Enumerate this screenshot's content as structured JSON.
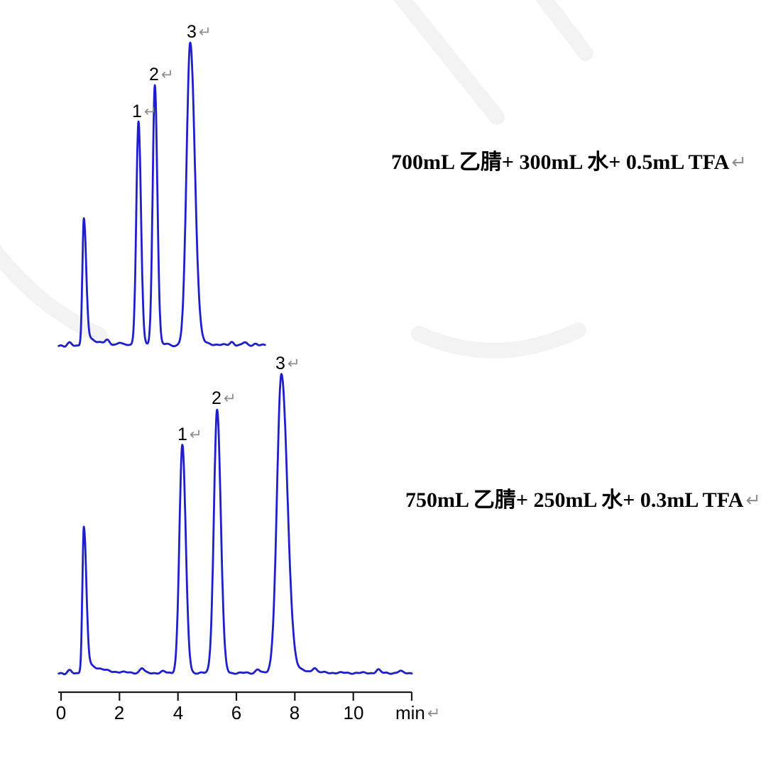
{
  "ui": {
    "return_mark": "↵"
  },
  "chart_data": {
    "type": "line",
    "title": "",
    "description": "Two stacked HPLC chromatograms (UV traces) comparing two mobile phase compositions; peaks numbered 1-3, x-axis in minutes",
    "colors": {
      "trace": "#1e1ecd",
      "axis": "#1a1a1a",
      "text": "#000000",
      "return_mark": "#8f8f8f"
    },
    "x_axis": {
      "unit_label": "min",
      "tick_labels": [
        "0",
        "2",
        "4",
        "6",
        "8",
        "10"
      ],
      "tick_values": [
        0,
        2,
        4,
        6,
        8,
        10
      ],
      "end_value": 12,
      "grid": false
    },
    "chromatograms": [
      {
        "position": "top",
        "condition_label": "700mL 乙腈+ 300mL 水+ 0.5mL TFA",
        "x_range_min": [
          -0.08,
          6.98
        ],
        "peaks": [
          {
            "label": "",
            "t": 0.78,
            "h": 0.417,
            "wl": 0.05,
            "wr": 0.075,
            "tail_amp": 0.1,
            "tail_tau": 0.4
          },
          {
            "label": "1",
            "t": 2.65,
            "h": 0.738,
            "wl": 0.075,
            "wr": 0.085,
            "tail_amp": 0,
            "tail_tau": 0.3
          },
          {
            "label": "2",
            "t": 3.21,
            "h": 0.859,
            "wl": 0.075,
            "wr": 0.085,
            "tail_amp": 0,
            "tail_tau": 0.3
          },
          {
            "label": "3",
            "t": 4.42,
            "h": 1.0,
            "wl": 0.125,
            "wr": 0.155,
            "tail_amp": 0.035,
            "tail_tau": 0.35
          }
        ],
        "noise": [
          {
            "t": 0.12,
            "h": -0.005
          },
          {
            "t": 0.3,
            "h": 0.009
          },
          {
            "t": 1.58,
            "h": 0.011
          },
          {
            "t": 2.0,
            "h": 0.008
          },
          {
            "t": 3.62,
            "h": 0.005
          },
          {
            "t": 5.85,
            "h": 0.011
          },
          {
            "t": 6.28,
            "h": 0.009
          },
          {
            "t": 6.65,
            "h": 0.006
          }
        ]
      },
      {
        "position": "bottom",
        "condition_label": "750mL 乙腈+ 250mL 水+ 0.3mL TFA",
        "x_range_min": [
          -0.08,
          12.0
        ],
        "peaks": [
          {
            "label": "",
            "t": 0.78,
            "h": 0.487,
            "wl": 0.05,
            "wr": 0.08,
            "tail_amp": 0.1,
            "tail_tau": 0.45
          },
          {
            "label": "1",
            "t": 4.15,
            "h": 0.763,
            "wl": 0.1,
            "wr": 0.115,
            "tail_amp": 0,
            "tail_tau": 0.3
          },
          {
            "label": "2",
            "t": 5.34,
            "h": 0.881,
            "wl": 0.11,
            "wr": 0.125,
            "tail_amp": 0,
            "tail_tau": 0.3
          },
          {
            "label": "3",
            "t": 7.54,
            "h": 1.0,
            "wl": 0.15,
            "wr": 0.2,
            "tail_amp": 0.04,
            "tail_tau": 0.45
          }
        ],
        "noise": [
          {
            "t": 0.12,
            "h": -0.005
          },
          {
            "t": 0.3,
            "h": 0.009
          },
          {
            "t": 2.77,
            "h": 0.015
          },
          {
            "t": 3.5,
            "h": 0.005
          },
          {
            "t": 6.73,
            "h": 0.013
          },
          {
            "t": 8.67,
            "h": 0.015
          },
          {
            "t": 10.85,
            "h": 0.011
          },
          {
            "t": 11.6,
            "h": 0.006
          }
        ]
      }
    ]
  }
}
